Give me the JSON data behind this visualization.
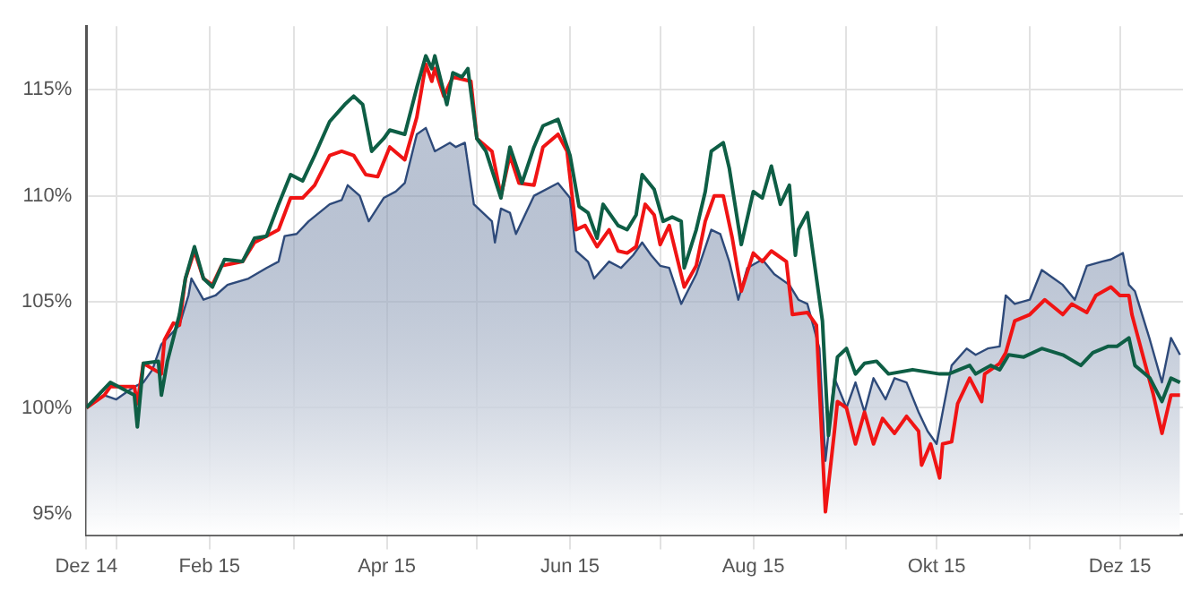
{
  "chart_data": {
    "type": "line",
    "xlim": [
      "2014-12-22",
      "2015-12-22"
    ],
    "xticks": [
      {
        "value": "2014-12-22",
        "label": "Dez 14"
      },
      {
        "value": "2015-01-01",
        "label": null
      },
      {
        "value": "2015-02-01",
        "label": "Feb 15"
      },
      {
        "value": "2015-03-01",
        "label": null
      },
      {
        "value": "2015-04-01",
        "label": "Apr 15"
      },
      {
        "value": "2015-05-01",
        "label": null
      },
      {
        "value": "2015-06-01",
        "label": "Jun 15"
      },
      {
        "value": "2015-07-01",
        "label": null
      },
      {
        "value": "2015-08-01",
        "label": "Aug 15"
      },
      {
        "value": "2015-09-01",
        "label": null
      },
      {
        "value": "2015-10-01",
        "label": "Okt 15"
      },
      {
        "value": "2015-11-01",
        "label": null
      },
      {
        "value": "2015-12-01",
        "label": "Dez 15"
      }
    ],
    "ylim": [
      94,
      118
    ],
    "yticks": [
      {
        "value": 95,
        "label": "95%"
      },
      {
        "value": 100,
        "label": "100%"
      },
      {
        "value": 105,
        "label": "105%"
      },
      {
        "value": 110,
        "label": "110%"
      },
      {
        "value": 115,
        "label": "115%"
      }
    ],
    "grid": true,
    "legend": false,
    "marker": "none",
    "line_style": "solid",
    "series": [
      {
        "type": "area",
        "color": "#2e4a7a",
        "x": [
          "2014-12-22",
          "2014-12-28",
          "2015-01-01",
          "2015-01-07",
          "2015-01-10",
          "2015-01-13",
          "2015-01-16",
          "2015-01-22",
          "2015-01-25",
          "2015-01-26",
          "2015-01-30",
          "2015-02-03",
          "2015-02-07",
          "2015-02-14",
          "2015-02-20",
          "2015-02-24",
          "2015-02-26",
          "2015-03-02",
          "2015-03-06",
          "2015-03-13",
          "2015-03-17",
          "2015-03-19",
          "2015-03-23",
          "2015-03-26",
          "2015-03-31",
          "2015-04-04",
          "2015-04-07",
          "2015-04-11",
          "2015-04-14",
          "2015-04-17",
          "2015-04-22",
          "2015-04-24",
          "2015-04-27",
          "2015-04-30",
          "2015-05-06",
          "2015-05-07",
          "2015-05-09",
          "2015-05-12",
          "2015-05-14",
          "2015-05-20",
          "2015-05-28",
          "2015-06-01",
          "2015-06-03",
          "2015-06-07",
          "2015-06-09",
          "2015-06-14",
          "2015-06-18",
          "2015-06-22",
          "2015-06-25",
          "2015-06-28",
          "2015-07-01",
          "2015-07-04",
          "2015-07-08",
          "2015-07-13",
          "2015-07-18",
          "2015-07-21",
          "2015-07-24",
          "2015-07-27",
          "2015-07-30",
          "2015-08-04",
          "2015-08-08",
          "2015-08-13",
          "2015-08-16",
          "2015-08-19",
          "2015-08-23",
          "2015-08-25",
          "2015-08-28",
          "2015-09-01",
          "2015-09-04",
          "2015-09-07",
          "2015-09-10",
          "2015-09-14",
          "2015-09-17",
          "2015-09-21",
          "2015-09-25",
          "2015-09-28",
          "2015-10-01",
          "2015-10-03",
          "2015-10-06",
          "2015-10-11",
          "2015-10-14",
          "2015-10-18",
          "2015-10-22",
          "2015-10-24",
          "2015-10-27",
          "2015-11-01",
          "2015-11-05",
          "2015-11-09",
          "2015-11-12",
          "2015-11-16",
          "2015-11-20",
          "2015-11-25",
          "2015-11-28",
          "2015-12-02",
          "2015-12-04",
          "2015-12-06",
          "2015-12-11",
          "2015-12-15",
          "2015-12-18",
          "2015-12-21"
        ],
        "values": [
          100.0,
          100.6,
          100.4,
          101.0,
          101.2,
          101.8,
          103.0,
          103.9,
          105.3,
          106.1,
          105.1,
          105.3,
          105.8,
          106.1,
          106.6,
          106.9,
          108.1,
          108.2,
          108.8,
          109.6,
          109.8,
          110.5,
          110.0,
          108.8,
          109.9,
          110.2,
          110.6,
          112.9,
          113.2,
          112.1,
          112.5,
          112.3,
          112.5,
          109.6,
          108.8,
          107.8,
          109.4,
          109.2,
          108.2,
          110.0,
          110.6,
          109.9,
          107.4,
          106.9,
          106.1,
          106.9,
          106.6,
          107.2,
          107.8,
          107.2,
          106.7,
          106.6,
          104.9,
          106.3,
          108.4,
          108.2,
          106.9,
          105.1,
          106.6,
          107.0,
          106.3,
          105.8,
          105.1,
          104.9,
          102.8,
          97.5,
          101.4,
          100.0,
          101.2,
          99.8,
          101.4,
          100.4,
          101.4,
          101.2,
          99.8,
          98.9,
          98.3,
          99.8,
          102.0,
          102.8,
          102.5,
          102.8,
          102.9,
          105.3,
          104.9,
          105.1,
          106.5,
          106.1,
          105.8,
          105.1,
          106.7,
          106.9,
          107.0,
          107.3,
          105.8,
          105.5,
          103.2,
          101.2,
          103.3,
          102.5
        ]
      },
      {
        "type": "line",
        "color": "#f01414",
        "x": [
          "2014-12-22",
          "2014-12-28",
          "2014-12-30",
          "2015-01-07",
          "2015-01-08",
          "2015-01-10",
          "2015-01-16",
          "2015-01-17",
          "2015-01-20",
          "2015-01-22",
          "2015-01-24",
          "2015-01-27",
          "2015-01-30",
          "2015-02-02",
          "2015-02-05",
          "2015-02-12",
          "2015-02-16",
          "2015-02-20",
          "2015-02-24",
          "2015-02-28",
          "2015-03-04",
          "2015-03-08",
          "2015-03-13",
          "2015-03-17",
          "2015-03-21",
          "2015-03-25",
          "2015-03-29",
          "2015-04-02",
          "2015-04-07",
          "2015-04-11",
          "2015-04-14",
          "2015-04-16",
          "2015-04-17",
          "2015-04-20",
          "2015-04-23",
          "2015-04-29",
          "2015-05-01",
          "2015-05-06",
          "2015-05-09",
          "2015-05-12",
          "2015-05-15",
          "2015-05-20",
          "2015-05-23",
          "2015-05-28",
          "2015-05-31",
          "2015-06-03",
          "2015-06-06",
          "2015-06-10",
          "2015-06-14",
          "2015-06-17",
          "2015-06-20",
          "2015-06-23",
          "2015-06-26",
          "2015-06-29",
          "2015-07-01",
          "2015-07-04",
          "2015-07-09",
          "2015-07-13",
          "2015-07-16",
          "2015-07-19",
          "2015-07-22",
          "2015-07-25",
          "2015-07-28",
          "2015-08-01",
          "2015-08-04",
          "2015-08-07",
          "2015-08-12",
          "2015-08-14",
          "2015-08-19",
          "2015-08-22",
          "2015-08-25",
          "2015-08-28",
          "2015-08-29",
          "2015-09-01",
          "2015-09-04",
          "2015-09-07",
          "2015-09-10",
          "2015-09-13",
          "2015-09-17",
          "2015-09-21",
          "2015-09-25",
          "2015-09-26",
          "2015-09-29",
          "2015-10-02",
          "2015-10-03",
          "2015-10-06",
          "2015-10-08",
          "2015-10-12",
          "2015-10-16",
          "2015-10-17",
          "2015-10-22",
          "2015-10-24",
          "2015-10-27",
          "2015-11-01",
          "2015-11-06",
          "2015-11-12",
          "2015-11-15",
          "2015-11-20",
          "2015-11-23",
          "2015-11-28",
          "2015-12-01",
          "2015-12-04",
          "2015-12-05",
          "2015-12-12",
          "2015-12-15",
          "2015-12-18",
          "2015-12-21"
        ],
        "values": [
          100.0,
          100.6,
          101.0,
          101.0,
          100.2,
          102.1,
          101.6,
          103.2,
          104.0,
          103.9,
          106.1,
          107.4,
          106.1,
          105.8,
          106.7,
          106.9,
          107.8,
          108.1,
          108.4,
          109.9,
          109.9,
          110.5,
          111.9,
          112.1,
          111.9,
          111.0,
          110.9,
          112.3,
          111.7,
          113.7,
          116.2,
          115.4,
          116.0,
          114.7,
          115.6,
          115.4,
          112.7,
          112.1,
          110.0,
          111.9,
          110.6,
          110.5,
          112.3,
          112.9,
          112.1,
          108.4,
          108.6,
          107.6,
          108.4,
          107.4,
          107.3,
          107.6,
          109.6,
          109.1,
          107.7,
          108.6,
          105.7,
          106.7,
          108.8,
          110.0,
          110.0,
          108.0,
          105.5,
          107.3,
          106.9,
          107.4,
          106.9,
          104.4,
          104.5,
          103.9,
          95.1,
          98.9,
          100.3,
          100.0,
          98.3,
          99.8,
          98.3,
          99.5,
          98.8,
          99.6,
          98.9,
          97.3,
          98.3,
          96.7,
          98.3,
          98.4,
          100.2,
          101.4,
          100.3,
          101.6,
          102.1,
          102.6,
          104.1,
          104.4,
          105.1,
          104.4,
          104.9,
          104.5,
          105.3,
          105.7,
          105.3,
          105.3,
          104.4,
          100.7,
          98.8,
          100.6,
          100.6
        ]
      },
      {
        "type": "line",
        "color": "#0e5e45",
        "x": [
          "2014-12-22",
          "2014-12-30",
          "2015-01-07",
          "2015-01-08",
          "2015-01-10",
          "2015-01-15",
          "2015-01-16",
          "2015-01-18",
          "2015-01-22",
          "2015-01-24",
          "2015-01-27",
          "2015-01-30",
          "2015-02-02",
          "2015-02-06",
          "2015-02-12",
          "2015-02-16",
          "2015-02-20",
          "2015-02-24",
          "2015-02-28",
          "2015-03-04",
          "2015-03-08",
          "2015-03-13",
          "2015-03-18",
          "2015-03-21",
          "2015-03-24",
          "2015-03-27",
          "2015-03-31",
          "2015-04-02",
          "2015-04-07",
          "2015-04-11",
          "2015-04-14",
          "2015-04-16",
          "2015-04-17",
          "2015-04-21",
          "2015-04-23",
          "2015-04-26",
          "2015-04-28",
          "2015-05-01",
          "2015-05-04",
          "2015-05-09",
          "2015-05-12",
          "2015-05-16",
          "2015-05-20",
          "2015-05-23",
          "2015-05-28",
          "2015-06-01",
          "2015-06-04",
          "2015-06-07",
          "2015-06-10",
          "2015-06-12",
          "2015-06-17",
          "2015-06-20",
          "2015-06-23",
          "2015-06-25",
          "2015-06-29",
          "2015-07-02",
          "2015-07-05",
          "2015-07-08",
          "2015-07-09",
          "2015-07-13",
          "2015-07-16",
          "2015-07-18",
          "2015-07-22",
          "2015-07-24",
          "2015-07-28",
          "2015-08-01",
          "2015-08-04",
          "2015-08-07",
          "2015-08-10",
          "2015-08-13",
          "2015-08-15",
          "2015-08-16",
          "2015-08-19",
          "2015-08-24",
          "2015-08-26",
          "2015-08-29",
          "2015-09-01",
          "2015-09-04",
          "2015-09-07",
          "2015-09-11",
          "2015-09-15",
          "2015-09-23",
          "2015-10-02",
          "2015-10-05",
          "2015-10-12",
          "2015-10-14",
          "2015-10-19",
          "2015-10-22",
          "2015-10-25",
          "2015-10-30",
          "2015-11-05",
          "2015-11-12",
          "2015-11-18",
          "2015-11-22",
          "2015-11-27",
          "2015-11-30",
          "2015-12-04",
          "2015-12-06",
          "2015-12-11",
          "2015-12-15",
          "2015-12-18",
          "2015-12-21"
        ],
        "values": [
          100.0,
          101.2,
          100.6,
          99.1,
          102.1,
          102.2,
          100.6,
          102.2,
          104.4,
          106.1,
          107.6,
          106.1,
          105.7,
          107.0,
          106.9,
          108.0,
          108.1,
          109.6,
          111.0,
          110.7,
          111.9,
          113.5,
          114.3,
          114.7,
          114.3,
          112.1,
          112.7,
          113.1,
          112.9,
          115.1,
          116.6,
          116.0,
          116.6,
          114.3,
          115.8,
          115.6,
          116.0,
          112.7,
          112.1,
          109.9,
          112.3,
          110.6,
          112.3,
          113.3,
          113.6,
          111.9,
          109.5,
          109.2,
          108.0,
          109.6,
          108.6,
          108.4,
          109.1,
          111.0,
          110.3,
          108.8,
          109.0,
          108.8,
          106.6,
          108.4,
          110.2,
          112.1,
          112.5,
          111.3,
          107.7,
          110.2,
          109.9,
          111.4,
          109.6,
          110.5,
          107.2,
          108.4,
          109.2,
          104.1,
          98.7,
          102.4,
          102.8,
          101.6,
          102.1,
          102.2,
          101.6,
          101.8,
          101.6,
          101.6,
          102.0,
          101.6,
          102.0,
          101.8,
          102.5,
          102.4,
          102.8,
          102.5,
          102.0,
          102.6,
          102.9,
          102.9,
          103.3,
          102.0,
          101.4,
          100.3,
          101.4,
          101.2
        ]
      }
    ]
  }
}
